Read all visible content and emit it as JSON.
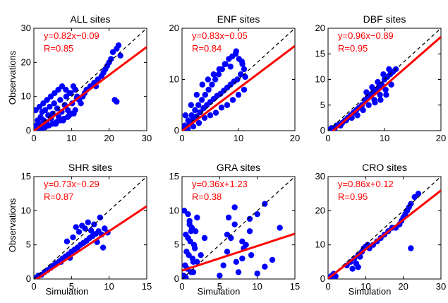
{
  "figure": {
    "xlabel": "Simulation",
    "ylabel": "Observations"
  },
  "chart_data": [
    {
      "type": "scatter",
      "title": "ALL sites",
      "xlim": [
        0,
        30
      ],
      "ylim": [
        0,
        30
      ],
      "xticks": [
        0,
        10,
        20,
        30
      ],
      "yticks": [
        0,
        10,
        20,
        30
      ],
      "equation": "y=0.82x−0.09",
      "r_text": "R=0.85",
      "fit": {
        "slope": 0.82,
        "intercept": -0.09
      },
      "x": [
        0.3,
        0.6,
        1,
        1.4,
        1.8,
        2.2,
        2.6,
        3,
        3.4,
        3.8,
        4.2,
        4.6,
        5,
        5.4,
        5.8,
        6.2,
        6.6,
        7,
        7.4,
        7.8,
        8.2,
        8.6,
        9,
        9.4,
        9.8,
        10.2,
        10.6,
        11,
        11.4,
        1,
        2,
        3,
        4,
        5,
        6,
        7,
        8,
        9,
        10,
        11,
        0.5,
        1.5,
        2.5,
        3.5,
        4.5,
        5.5,
        6.5,
        7.5,
        8.5,
        9.5,
        10.5,
        11.5,
        12,
        12.5,
        13,
        13.5,
        14,
        15,
        16,
        16.5,
        17,
        18,
        18.5,
        19,
        19.5,
        20,
        20.5,
        21,
        22,
        22.5,
        23,
        21.5,
        22
      ],
      "y": [
        0.5,
        1.5,
        3,
        2,
        4,
        5.5,
        3,
        6,
        2.5,
        4.5,
        7,
        3.5,
        5,
        8,
        2,
        6.5,
        4,
        9,
        5.5,
        3,
        7.5,
        10,
        6,
        4.5,
        11,
        8,
        5,
        12,
        9.5,
        0.2,
        0.5,
        1,
        1.5,
        2,
        2.5,
        3,
        3.5,
        4,
        5,
        6,
        6,
        7,
        8,
        9,
        10,
        11,
        12,
        13,
        12,
        11,
        13,
        10,
        9,
        8,
        10,
        11,
        12,
        13,
        14,
        13,
        15,
        16,
        17,
        18,
        19,
        20,
        21,
        23,
        24,
        25,
        22,
        9,
        8.5
      ]
    },
    {
      "type": "scatter",
      "title": "ENF sites",
      "xlim": [
        0,
        20
      ],
      "ylim": [
        0,
        20
      ],
      "xticks": [
        0,
        10,
        20
      ],
      "yticks": [
        0,
        10,
        20
      ],
      "equation": "y=0.83x−0.05",
      "r_text": "R=0.84",
      "fit": {
        "slope": 0.83,
        "intercept": -0.05
      },
      "x": [
        0.2,
        0.5,
        0.8,
        1.1,
        1.4,
        1.7,
        2,
        2.3,
        2.6,
        2.9,
        3.2,
        3.5,
        3.8,
        4.1,
        4.4,
        4.7,
        5,
        5.3,
        5.6,
        5.9,
        6.2,
        6.5,
        6.8,
        7.1,
        7.4,
        7.7,
        8,
        8.3,
        8.6,
        8.9,
        9.2,
        9.5,
        9.8,
        10.1,
        10.4,
        10.7,
        11,
        1,
        2,
        3,
        4,
        5,
        6,
        7,
        8,
        9,
        10,
        11,
        0.6,
        1.6,
        2.6,
        3.6,
        4.6,
        5.6,
        6.6,
        7.6,
        8.6,
        9.6,
        10.6,
        11.2
      ],
      "y": [
        0.3,
        1,
        0.6,
        2,
        1.4,
        3,
        2.2,
        4,
        2.8,
        5,
        3.6,
        6,
        4.4,
        7,
        5,
        8,
        5.6,
        9,
        6.2,
        10,
        6.8,
        11,
        7.2,
        12,
        7.8,
        13,
        8.4,
        14,
        9,
        14.5,
        9.6,
        15,
        10,
        14,
        11,
        13,
        12,
        0.3,
        0.8,
        1.5,
        2.5,
        3,
        3.5,
        4.5,
        5,
        6,
        7,
        8,
        3,
        5,
        7,
        9,
        10,
        11,
        12,
        13,
        12.5,
        15.5,
        13.5,
        10.5
      ]
    },
    {
      "type": "scatter",
      "title": "DBF sites",
      "xlim": [
        0,
        20
      ],
      "ylim": [
        0,
        20
      ],
      "xticks": [
        0,
        10,
        20
      ],
      "yticks": [
        0,
        5,
        10,
        15,
        20
      ],
      "equation": "y=0.96x−0.89",
      "r_text": "R=0.95",
      "fit": {
        "slope": 0.96,
        "intercept": -0.89
      },
      "x": [
        0.3,
        0.6,
        1,
        1.5,
        2,
        2.5,
        3,
        3.5,
        4,
        4.5,
        5,
        5.5,
        6,
        6.5,
        7,
        7.5,
        8,
        8.5,
        9,
        9.5,
        10,
        10.5,
        11,
        11.5,
        12,
        1.2,
        2.2,
        3.2,
        4.2,
        5.2,
        6.2,
        7.2,
        8.2,
        9.2,
        10.2,
        11.2,
        6.8,
        7.8,
        8.8,
        9.8,
        10.8,
        8.3,
        9.3,
        10.3
      ],
      "y": [
        0.2,
        0.5,
        0.3,
        1,
        1.2,
        1.5,
        2,
        2.5,
        3,
        3.5,
        4,
        4.5,
        5,
        6,
        6.5,
        7,
        7.5,
        8,
        8.5,
        9,
        10,
        10.5,
        11,
        11.5,
        12,
        0.5,
        1,
        2,
        2.5,
        3,
        4,
        5,
        6,
        7,
        8,
        9,
        7.5,
        8.5,
        9.5,
        11,
        12,
        5.5,
        6,
        7
      ]
    },
    {
      "type": "scatter",
      "title": "SHR sites",
      "xlim": [
        0,
        15
      ],
      "ylim": [
        0,
        15
      ],
      "xticks": [
        0,
        5,
        10,
        15
      ],
      "yticks": [
        0,
        5,
        10,
        15
      ],
      "equation": "y=0.73x−0.29",
      "r_text": "R=0.87",
      "fit": {
        "slope": 0.73,
        "intercept": -0.29
      },
      "x": [
        0.3,
        0.6,
        1,
        1.4,
        1.8,
        2.2,
        2.6,
        3,
        3.4,
        3.8,
        4.2,
        4.6,
        5,
        5.4,
        5.8,
        6.2,
        6.6,
        7,
        7.4,
        7.8,
        8.2,
        8.6,
        9,
        9.4,
        9.8,
        5.6,
        6.4,
        7.2,
        8,
        8.8,
        4.4,
        5.2,
        6,
        6.8,
        7.6,
        8.4,
        9.2,
        3.6,
        4.8
      ],
      "y": [
        0.2,
        0.5,
        0.6,
        1,
        1.3,
        1.6,
        2,
        2.3,
        2.6,
        3,
        3.3,
        3.6,
        4,
        4.3,
        4.6,
        5,
        5.3,
        5.6,
        6,
        6.3,
        6.6,
        7,
        6.5,
        7.4,
        6.8,
        7.6,
        7.8,
        8.3,
        8,
        9,
        5.5,
        6.1,
        6.9,
        7.4,
        7.1,
        5.4,
        4.6,
        2.5,
        3.1
      ]
    },
    {
      "type": "scatter",
      "title": "GRA sites",
      "xlim": [
        0,
        15
      ],
      "ylim": [
        0,
        15
      ],
      "xticks": [
        0,
        5,
        10,
        15
      ],
      "yticks": [
        0,
        5,
        10,
        15
      ],
      "equation": "y=0.36x+1.23",
      "r_text": "R=0.38",
      "fit": {
        "slope": 0.36,
        "intercept": 1.23
      },
      "x": [
        0.2,
        0.4,
        0.6,
        0.8,
        1,
        1.2,
        1.4,
        1.6,
        1.8,
        2,
        0.3,
        0.5,
        0.7,
        0.9,
        1.1,
        1.3,
        1.5,
        1.7,
        0.5,
        1,
        1.5,
        2,
        2.5,
        3,
        0.4,
        0.8,
        1.2,
        5,
        5.5,
        6,
        6.5,
        7,
        7.5,
        8,
        8.5,
        9,
        6.2,
        7.2,
        8.2,
        9.2,
        10,
        11,
        12,
        13,
        6,
        7,
        8,
        9,
        10,
        11
      ],
      "y": [
        0.5,
        2,
        4,
        6,
        8,
        1,
        3,
        5,
        7,
        9,
        10,
        0.2,
        1.5,
        3.5,
        5.5,
        7.5,
        2.5,
        4.5,
        6.5,
        8.5,
        1,
        2.5,
        3.5,
        6,
        0.3,
        9.5,
        7,
        0.5,
        2,
        4,
        6,
        8,
        1,
        3,
        5,
        7,
        9,
        2.5,
        4.5,
        3.5,
        0.8,
        1.8,
        2.8,
        7.5,
        6.5,
        10.5,
        5.5,
        8.8,
        9.5,
        11
      ]
    },
    {
      "type": "scatter",
      "title": "CRO sites",
      "xlim": [
        0,
        30
      ],
      "ylim": [
        0,
        30
      ],
      "xticks": [
        0,
        10,
        20,
        30
      ],
      "yticks": [
        0,
        10,
        20,
        30
      ],
      "equation": "y=0.86x+0.12",
      "r_text": "R=0.95",
      "fit": {
        "slope": 0.86,
        "intercept": 0.12
      },
      "x": [
        0.3,
        0.6,
        1,
        1.5,
        2,
        5,
        6,
        7,
        7.5,
        8,
        8.5,
        9,
        9.5,
        10,
        10.5,
        11,
        12,
        13,
        14,
        15,
        16,
        17,
        18,
        19,
        19.5,
        20,
        20.5,
        21,
        21.5,
        22,
        23,
        24,
        6.5,
        8,
        22
      ],
      "y": [
        0.5,
        0.3,
        1,
        1.5,
        0.8,
        4,
        5,
        6,
        4.5,
        7,
        6.5,
        8,
        9,
        9.5,
        10,
        9,
        10,
        11,
        12,
        13,
        14,
        15,
        15,
        16,
        17,
        18,
        19,
        20,
        21,
        22,
        24,
        25,
        3,
        3.5,
        9
      ]
    }
  ]
}
